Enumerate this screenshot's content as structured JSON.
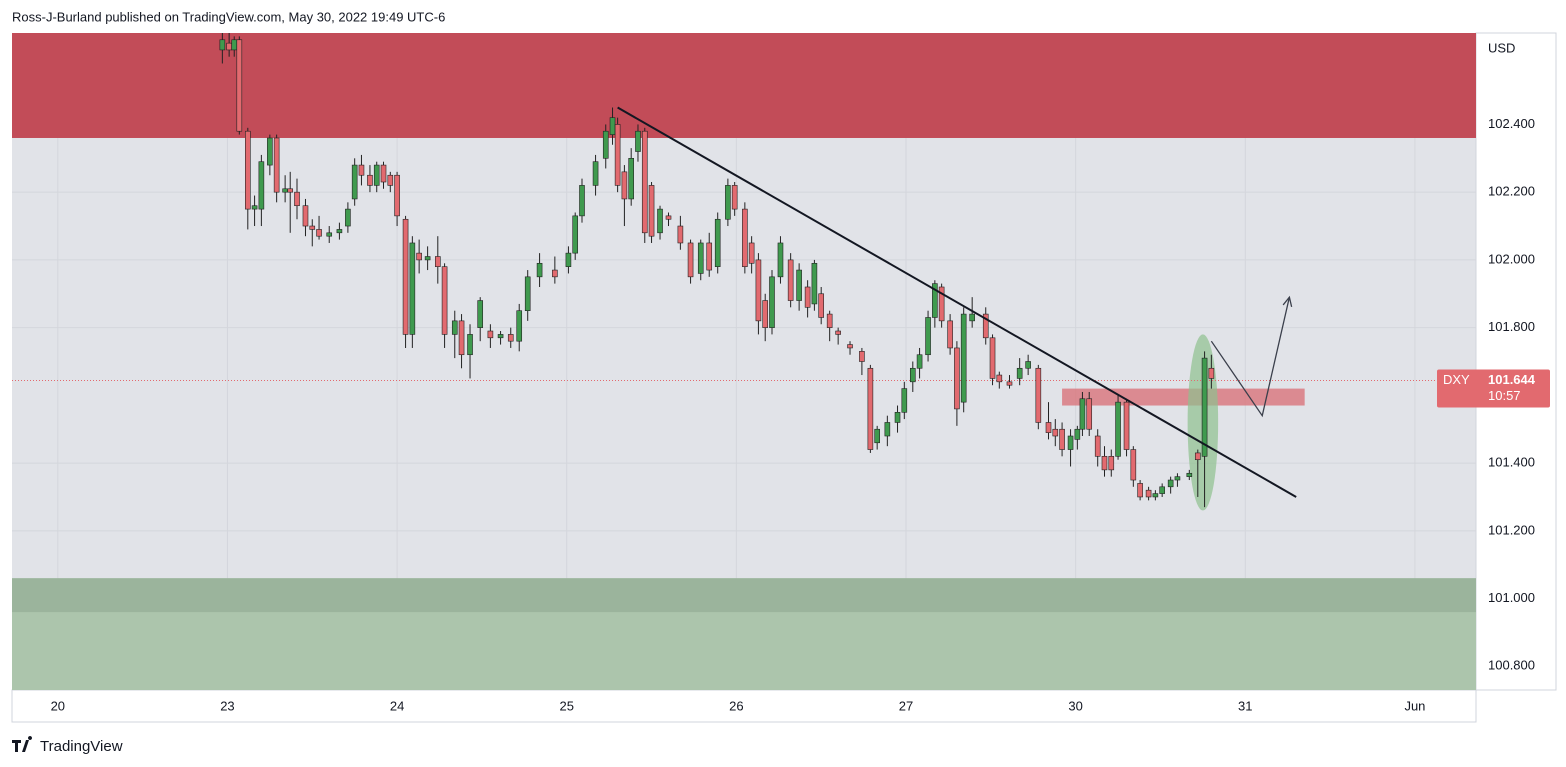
{
  "header": "Ross-J-Burland published on TradingView.com, May 30, 2022 19:49 UTC-6",
  "footer": "TradingView",
  "chart_data": {
    "type": "candlestick",
    "currency": "USD",
    "symbol": "DXY",
    "last_price": 101.644,
    "countdown": "10:57",
    "up_color": "#3f9a4e",
    "down_color": "#e26a6f",
    "grid": true,
    "categories": [
      "20",
      "23",
      "24",
      "25",
      "26",
      "27",
      "30",
      "31",
      "Jun"
    ],
    "xlim": [
      -0.27,
      8.36
    ],
    "ylim": [
      100.73,
      102.67
    ],
    "yticks": [
      {
        "value": 100.8,
        "label": "100.800"
      },
      {
        "value": 101,
        "label": "101.000"
      },
      {
        "value": 101.2,
        "label": "101.200"
      },
      {
        "value": 101.4,
        "label": "101.400"
      },
      {
        "value": 101.8,
        "label": "101.800"
      },
      {
        "value": 102,
        "label": "102.000"
      },
      {
        "value": 102.2,
        "label": "102.200"
      },
      {
        "value": 102.4,
        "label": "102.400"
      }
    ],
    "zones": [
      {
        "top": 102.67,
        "bottom": 102.36,
        "color": "#c24c58"
      },
      {
        "top": 101.06,
        "bottom": 100.73,
        "color": "#acc5ac"
      },
      {
        "top": 101.06,
        "bottom": 100.96,
        "color": "#9bb49c"
      }
    ],
    "box": {
      "x": [
        5.92,
        7.35
      ],
      "y": [
        101.57,
        101.62
      ],
      "color": "#d9737b"
    },
    "trendline": {
      "x": [
        3.3,
        7.3
      ],
      "y": [
        102.45,
        101.3
      ]
    },
    "ellipse": {
      "cx": 6.75,
      "cy": 101.52,
      "rx": 0.09,
      "ry": 0.26,
      "color": "#8fc08f"
    },
    "projection": {
      "x": [
        6.8,
        7.1,
        7.26
      ],
      "y": [
        101.76,
        101.54,
        101.89
      ]
    },
    "candles": [
      {
        "x": 0.97,
        "o": 102.62,
        "h": 102.67,
        "l": 102.58,
        "c": 102.65
      },
      {
        "x": 1.01,
        "o": 102.64,
        "h": 102.67,
        "l": 102.6,
        "c": 102.62
      },
      {
        "x": 1.04,
        "o": 102.62,
        "h": 102.66,
        "l": 102.6,
        "c": 102.65
      },
      {
        "x": 1.07,
        "o": 102.65,
        "h": 102.66,
        "l": 102.37,
        "c": 102.38
      },
      {
        "x": 1.12,
        "o": 102.38,
        "h": 102.39,
        "l": 102.09,
        "c": 102.15
      },
      {
        "x": 1.16,
        "o": 102.15,
        "h": 102.19,
        "l": 102.1,
        "c": 102.16
      },
      {
        "x": 1.2,
        "o": 102.15,
        "h": 102.31,
        "l": 102.1,
        "c": 102.29
      },
      {
        "x": 1.25,
        "o": 102.28,
        "h": 102.37,
        "l": 102.25,
        "c": 102.36
      },
      {
        "x": 1.29,
        "o": 102.36,
        "h": 102.37,
        "l": 102.17,
        "c": 102.2
      },
      {
        "x": 1.34,
        "o": 102.2,
        "h": 102.25,
        "l": 102.17,
        "c": 102.21
      },
      {
        "x": 1.37,
        "o": 102.21,
        "h": 102.26,
        "l": 102.08,
        "c": 102.2
      },
      {
        "x": 1.41,
        "o": 102.2,
        "h": 102.24,
        "l": 102.12,
        "c": 102.16
      },
      {
        "x": 1.46,
        "o": 102.16,
        "h": 102.18,
        "l": 102.07,
        "c": 102.1
      },
      {
        "x": 1.5,
        "o": 102.1,
        "h": 102.12,
        "l": 102.04,
        "c": 102.09
      },
      {
        "x": 1.54,
        "o": 102.09,
        "h": 102.13,
        "l": 102.06,
        "c": 102.07
      },
      {
        "x": 1.6,
        "o": 102.07,
        "h": 102.1,
        "l": 102.05,
        "c": 102.08
      },
      {
        "x": 1.66,
        "o": 102.08,
        "h": 102.11,
        "l": 102.06,
        "c": 102.09
      },
      {
        "x": 1.71,
        "o": 102.1,
        "h": 102.17,
        "l": 102.08,
        "c": 102.15
      },
      {
        "x": 1.75,
        "o": 102.18,
        "h": 102.3,
        "l": 102.16,
        "c": 102.28
      },
      {
        "x": 1.79,
        "o": 102.28,
        "h": 102.31,
        "l": 102.22,
        "c": 102.25
      },
      {
        "x": 1.84,
        "o": 102.25,
        "h": 102.28,
        "l": 102.2,
        "c": 102.22
      },
      {
        "x": 1.88,
        "o": 102.22,
        "h": 102.29,
        "l": 102.2,
        "c": 102.28
      },
      {
        "x": 1.92,
        "o": 102.28,
        "h": 102.29,
        "l": 102.21,
        "c": 102.23
      },
      {
        "x": 1.96,
        "o": 102.25,
        "h": 102.26,
        "l": 102.2,
        "c": 102.22
      },
      {
        "x": 2.0,
        "o": 102.25,
        "h": 102.26,
        "l": 102.1,
        "c": 102.13
      },
      {
        "x": 2.05,
        "o": 102.12,
        "h": 102.13,
        "l": 101.74,
        "c": 101.78
      },
      {
        "x": 2.09,
        "o": 101.78,
        "h": 102.07,
        "l": 101.74,
        "c": 102.05
      },
      {
        "x": 2.13,
        "o": 102.02,
        "h": 102.06,
        "l": 101.96,
        "c": 102.0
      },
      {
        "x": 2.18,
        "o": 102.0,
        "h": 102.04,
        "l": 101.97,
        "c": 102.01
      },
      {
        "x": 2.24,
        "o": 102.01,
        "h": 102.07,
        "l": 101.93,
        "c": 101.98
      },
      {
        "x": 2.28,
        "o": 101.98,
        "h": 101.99,
        "l": 101.74,
        "c": 101.78
      },
      {
        "x": 2.34,
        "o": 101.78,
        "h": 101.85,
        "l": 101.71,
        "c": 101.82
      },
      {
        "x": 2.38,
        "o": 101.82,
        "h": 101.84,
        "l": 101.68,
        "c": 101.72
      },
      {
        "x": 2.43,
        "o": 101.72,
        "h": 101.81,
        "l": 101.65,
        "c": 101.78
      },
      {
        "x": 2.49,
        "o": 101.8,
        "h": 101.89,
        "l": 101.76,
        "c": 101.88
      },
      {
        "x": 2.55,
        "o": 101.79,
        "h": 101.81,
        "l": 101.74,
        "c": 101.77
      },
      {
        "x": 2.61,
        "o": 101.77,
        "h": 101.79,
        "l": 101.75,
        "c": 101.78
      },
      {
        "x": 2.67,
        "o": 101.78,
        "h": 101.8,
        "l": 101.74,
        "c": 101.76
      },
      {
        "x": 2.72,
        "o": 101.76,
        "h": 101.87,
        "l": 101.73,
        "c": 101.85
      },
      {
        "x": 2.77,
        "o": 101.85,
        "h": 101.97,
        "l": 101.82,
        "c": 101.95
      },
      {
        "x": 2.84,
        "o": 101.95,
        "h": 102.02,
        "l": 101.92,
        "c": 101.99
      },
      {
        "x": 2.93,
        "o": 101.97,
        "h": 102.01,
        "l": 101.93,
        "c": 101.95
      },
      {
        "x": 3.01,
        "o": 101.98,
        "h": 102.04,
        "l": 101.96,
        "c": 102.02
      },
      {
        "x": 3.05,
        "o": 102.02,
        "h": 102.14,
        "l": 102.0,
        "c": 102.13
      },
      {
        "x": 3.09,
        "o": 102.13,
        "h": 102.24,
        "l": 102.11,
        "c": 102.22
      },
      {
        "x": 3.17,
        "o": 102.22,
        "h": 102.31,
        "l": 102.19,
        "c": 102.29
      },
      {
        "x": 3.23,
        "o": 102.3,
        "h": 102.4,
        "l": 102.27,
        "c": 102.38
      },
      {
        "x": 3.27,
        "o": 102.37,
        "h": 102.45,
        "l": 102.34,
        "c": 102.42
      },
      {
        "x": 3.3,
        "o": 102.4,
        "h": 102.42,
        "l": 102.2,
        "c": 102.22
      },
      {
        "x": 3.34,
        "o": 102.26,
        "h": 102.28,
        "l": 102.1,
        "c": 102.18
      },
      {
        "x": 3.38,
        "o": 102.18,
        "h": 102.33,
        "l": 102.16,
        "c": 102.3
      },
      {
        "x": 3.42,
        "o": 102.32,
        "h": 102.4,
        "l": 102.29,
        "c": 102.38
      },
      {
        "x": 3.46,
        "o": 102.38,
        "h": 102.39,
        "l": 102.05,
        "c": 102.08
      },
      {
        "x": 3.5,
        "o": 102.22,
        "h": 102.23,
        "l": 102.05,
        "c": 102.07
      },
      {
        "x": 3.55,
        "o": 102.08,
        "h": 102.16,
        "l": 102.06,
        "c": 102.15
      },
      {
        "x": 3.6,
        "o": 102.13,
        "h": 102.14,
        "l": 102.1,
        "c": 102.12
      },
      {
        "x": 3.67,
        "o": 102.1,
        "h": 102.13,
        "l": 102.03,
        "c": 102.05
      },
      {
        "x": 3.73,
        "o": 102.05,
        "h": 102.06,
        "l": 101.93,
        "c": 101.95
      },
      {
        "x": 3.79,
        "o": 101.96,
        "h": 102.06,
        "l": 101.94,
        "c": 102.05
      },
      {
        "x": 3.84,
        "o": 102.05,
        "h": 102.08,
        "l": 101.95,
        "c": 101.97
      },
      {
        "x": 3.89,
        "o": 101.98,
        "h": 102.14,
        "l": 101.96,
        "c": 102.12
      },
      {
        "x": 3.95,
        "o": 102.12,
        "h": 102.24,
        "l": 102.1,
        "c": 102.22
      },
      {
        "x": 3.99,
        "o": 102.22,
        "h": 102.23,
        "l": 102.13,
        "c": 102.15
      },
      {
        "x": 4.05,
        "o": 102.15,
        "h": 102.17,
        "l": 101.96,
        "c": 101.98
      },
      {
        "x": 4.09,
        "o": 102.05,
        "h": 102.07,
        "l": 101.96,
        "c": 101.99
      },
      {
        "x": 4.13,
        "o": 102.0,
        "h": 102.02,
        "l": 101.78,
        "c": 101.82
      },
      {
        "x": 4.17,
        "o": 101.88,
        "h": 101.9,
        "l": 101.76,
        "c": 101.8
      },
      {
        "x": 4.21,
        "o": 101.8,
        "h": 101.97,
        "l": 101.78,
        "c": 101.95
      },
      {
        "x": 4.26,
        "o": 101.95,
        "h": 102.07,
        "l": 101.93,
        "c": 102.05
      },
      {
        "x": 4.32,
        "o": 102.0,
        "h": 102.02,
        "l": 101.86,
        "c": 101.88
      },
      {
        "x": 4.37,
        "o": 101.88,
        "h": 101.99,
        "l": 101.85,
        "c": 101.97
      },
      {
        "x": 4.42,
        "o": 101.92,
        "h": 101.94,
        "l": 101.83,
        "c": 101.86
      },
      {
        "x": 4.46,
        "o": 101.87,
        "h": 102.0,
        "l": 101.85,
        "c": 101.99
      },
      {
        "x": 4.5,
        "o": 101.9,
        "h": 101.92,
        "l": 101.81,
        "c": 101.83
      },
      {
        "x": 4.55,
        "o": 101.84,
        "h": 101.85,
        "l": 101.76,
        "c": 101.8
      },
      {
        "x": 4.6,
        "o": 101.79,
        "h": 101.8,
        "l": 101.75,
        "c": 101.78
      },
      {
        "x": 4.67,
        "o": 101.75,
        "h": 101.76,
        "l": 101.72,
        "c": 101.74
      },
      {
        "x": 4.74,
        "o": 101.73,
        "h": 101.74,
        "l": 101.66,
        "c": 101.7
      },
      {
        "x": 4.79,
        "o": 101.68,
        "h": 101.69,
        "l": 101.43,
        "c": 101.44
      },
      {
        "x": 4.83,
        "o": 101.46,
        "h": 101.51,
        "l": 101.44,
        "c": 101.5
      },
      {
        "x": 4.89,
        "o": 101.48,
        "h": 101.54,
        "l": 101.45,
        "c": 101.52
      },
      {
        "x": 4.95,
        "o": 101.52,
        "h": 101.57,
        "l": 101.49,
        "c": 101.55
      },
      {
        "x": 4.99,
        "o": 101.55,
        "h": 101.64,
        "l": 101.53,
        "c": 101.62
      },
      {
        "x": 5.04,
        "o": 101.64,
        "h": 101.7,
        "l": 101.61,
        "c": 101.68
      },
      {
        "x": 5.08,
        "o": 101.68,
        "h": 101.74,
        "l": 101.65,
        "c": 101.72
      },
      {
        "x": 5.13,
        "o": 101.72,
        "h": 101.85,
        "l": 101.7,
        "c": 101.83
      },
      {
        "x": 5.17,
        "o": 101.83,
        "h": 101.94,
        "l": 101.8,
        "c": 101.93
      },
      {
        "x": 5.21,
        "o": 101.92,
        "h": 101.93,
        "l": 101.8,
        "c": 101.82
      },
      {
        "x": 5.26,
        "o": 101.82,
        "h": 101.84,
        "l": 101.72,
        "c": 101.74
      },
      {
        "x": 5.3,
        "o": 101.74,
        "h": 101.76,
        "l": 101.51,
        "c": 101.56
      },
      {
        "x": 5.34,
        "o": 101.58,
        "h": 101.86,
        "l": 101.55,
        "c": 101.84
      },
      {
        "x": 5.39,
        "o": 101.82,
        "h": 101.89,
        "l": 101.8,
        "c": 101.84
      },
      {
        "x": 5.47,
        "o": 101.84,
        "h": 101.86,
        "l": 101.75,
        "c": 101.77
      },
      {
        "x": 5.51,
        "o": 101.77,
        "h": 101.78,
        "l": 101.63,
        "c": 101.65
      },
      {
        "x": 5.55,
        "o": 101.66,
        "h": 101.67,
        "l": 101.62,
        "c": 101.64
      },
      {
        "x": 5.61,
        "o": 101.64,
        "h": 101.66,
        "l": 101.62,
        "c": 101.63
      },
      {
        "x": 5.67,
        "o": 101.65,
        "h": 101.71,
        "l": 101.63,
        "c": 101.68
      },
      {
        "x": 5.72,
        "o": 101.68,
        "h": 101.72,
        "l": 101.66,
        "c": 101.7
      },
      {
        "x": 5.78,
        "o": 101.68,
        "h": 101.69,
        "l": 101.5,
        "c": 101.52
      },
      {
        "x": 5.84,
        "o": 101.52,
        "h": 101.58,
        "l": 101.47,
        "c": 101.49
      },
      {
        "x": 5.88,
        "o": 101.5,
        "h": 101.53,
        "l": 101.45,
        "c": 101.48
      },
      {
        "x": 5.92,
        "o": 101.5,
        "h": 101.52,
        "l": 101.42,
        "c": 101.44
      },
      {
        "x": 5.97,
        "o": 101.44,
        "h": 101.5,
        "l": 101.39,
        "c": 101.48
      },
      {
        "x": 6.01,
        "o": 101.47,
        "h": 101.51,
        "l": 101.44,
        "c": 101.5
      },
      {
        "x": 6.04,
        "o": 101.5,
        "h": 101.61,
        "l": 101.48,
        "c": 101.59
      },
      {
        "x": 6.08,
        "o": 101.59,
        "h": 101.61,
        "l": 101.48,
        "c": 101.5
      },
      {
        "x": 6.13,
        "o": 101.48,
        "h": 101.5,
        "l": 101.39,
        "c": 101.42
      },
      {
        "x": 6.17,
        "o": 101.42,
        "h": 101.45,
        "l": 101.36,
        "c": 101.38
      },
      {
        "x": 6.21,
        "o": 101.42,
        "h": 101.44,
        "l": 101.36,
        "c": 101.38
      },
      {
        "x": 6.25,
        "o": 101.42,
        "h": 101.6,
        "l": 101.41,
        "c": 101.58
      },
      {
        "x": 6.3,
        "o": 101.58,
        "h": 101.59,
        "l": 101.42,
        "c": 101.44
      },
      {
        "x": 6.34,
        "o": 101.44,
        "h": 101.45,
        "l": 101.33,
        "c": 101.35
      },
      {
        "x": 6.38,
        "o": 101.34,
        "h": 101.35,
        "l": 101.29,
        "c": 101.3
      },
      {
        "x": 6.43,
        "o": 101.32,
        "h": 101.33,
        "l": 101.29,
        "c": 101.3
      },
      {
        "x": 6.47,
        "o": 101.3,
        "h": 101.32,
        "l": 101.29,
        "c": 101.31
      },
      {
        "x": 6.51,
        "o": 101.31,
        "h": 101.34,
        "l": 101.3,
        "c": 101.33
      },
      {
        "x": 6.56,
        "o": 101.33,
        "h": 101.36,
        "l": 101.31,
        "c": 101.35
      },
      {
        "x": 6.6,
        "o": 101.35,
        "h": 101.37,
        "l": 101.33,
        "c": 101.36
      },
      {
        "x": 6.67,
        "o": 101.36,
        "h": 101.38,
        "l": 101.35,
        "c": 101.37
      },
      {
        "x": 6.72,
        "o": 101.43,
        "h": 101.44,
        "l": 101.3,
        "c": 101.41
      },
      {
        "x": 6.76,
        "o": 101.42,
        "h": 101.73,
        "l": 101.27,
        "c": 101.71
      },
      {
        "x": 6.8,
        "o": 101.68,
        "h": 101.72,
        "l": 101.62,
        "c": 101.65
      }
    ]
  }
}
